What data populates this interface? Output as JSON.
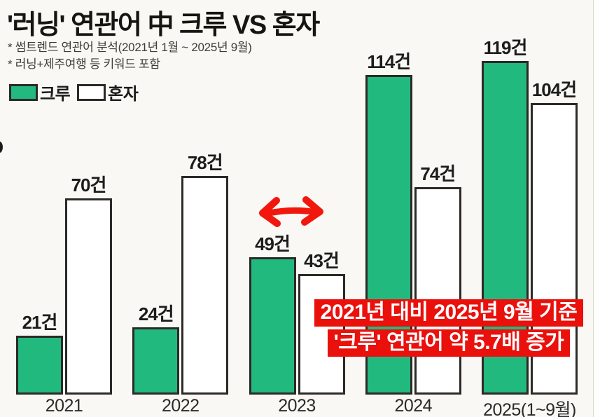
{
  "header": {
    "title": "'러닝' 연관어 中 크루 VS 혼자",
    "notes": [
      "* 썸트렌드 연관어 분석(2021년 1월 ~ 2025년 9월)",
      "* 러닝+제주여행 등 키워드 포함"
    ]
  },
  "legend": {
    "items": [
      {
        "label": "크루",
        "color": "#22b97f"
      },
      {
        "label": "혼자",
        "color": "#ffffff"
      }
    ]
  },
  "chart_data": {
    "type": "bar",
    "title": "'러닝' 연관어 中 크루 VS 혼자",
    "categories": [
      "2021",
      "2022",
      "2023",
      "2024",
      "2025(1~9월)"
    ],
    "series": [
      {
        "name": "크루",
        "color": "#22b97f",
        "values": [
          21,
          24,
          49,
          114,
          119
        ]
      },
      {
        "name": "혼자",
        "color": "#ffffff",
        "values": [
          70,
          78,
          43,
          74,
          104
        ]
      }
    ],
    "value_label_suffix": "건",
    "xlabel": "",
    "ylabel": "",
    "ylim": [
      0,
      125
    ],
    "grid": false,
    "legend_position": "top-left",
    "bar_border_color": "#2b2a27"
  },
  "callout": {
    "lines": [
      "2021년 대비 2025년 9월 기준",
      "'크루' 연관어 약 5.7배 증가"
    ],
    "bg_color": "#ea100c",
    "text_color": "#ffffff"
  },
  "arrow": {
    "meaning": "gap-between-crew-and-alone",
    "color": "#f2170d"
  },
  "colors": {
    "background": "#f9f8f5",
    "text": "#1c1b19",
    "accent_green": "#22b97f",
    "accent_red": "#ea100c"
  }
}
